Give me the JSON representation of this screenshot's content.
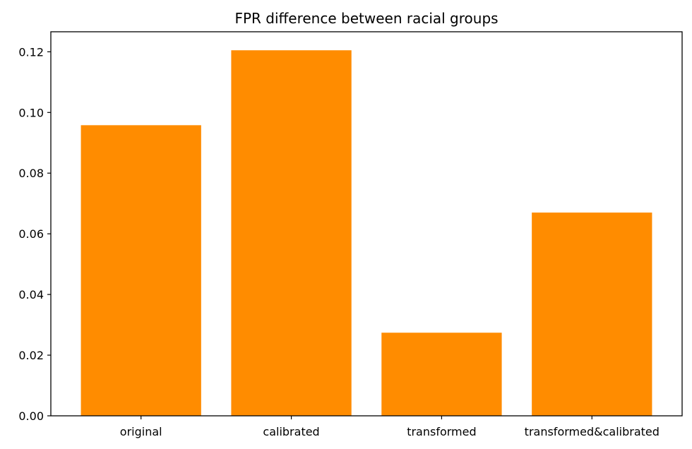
{
  "chart_data": {
    "type": "bar",
    "title": "FPR difference between racial groups",
    "xlabel": "",
    "ylabel": "",
    "categories": [
      "original",
      "calibrated",
      "transformed",
      "transformed&calibrated"
    ],
    "values": [
      0.0958,
      0.1205,
      0.0274,
      0.067
    ],
    "ylim": [
      0,
      0.1266
    ],
    "yticks": [
      0.0,
      0.02,
      0.04,
      0.06,
      0.08,
      0.1,
      0.12
    ],
    "ytick_labels": [
      "0.00",
      "0.02",
      "0.04",
      "0.06",
      "0.08",
      "0.10",
      "0.12"
    ],
    "bar_color": "#ff8c00",
    "grid": false,
    "legend": "none"
  }
}
